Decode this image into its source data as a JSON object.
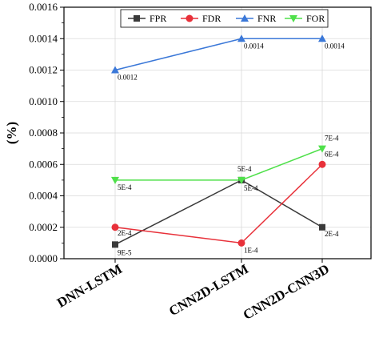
{
  "chart_data": {
    "type": "line",
    "title": "",
    "xlabel": "",
    "ylabel": "(%)",
    "ylim": [
      0,
      0.0016
    ],
    "yticks": [
      "0.0000",
      "0.0002",
      "0.0004",
      "0.0006",
      "0.0008",
      "0.0010",
      "0.0012",
      "0.0014",
      "0.0016"
    ],
    "categories": [
      "DNN-LSTM",
      "CNN2D-LSTM",
      "CNN2D-CNN3D"
    ],
    "grid": true,
    "legend_position": "top-right",
    "series": [
      {
        "name": "FPR",
        "color": "#3a3a3a",
        "marker": "square",
        "values": [
          9e-05,
          0.0005,
          0.0002
        ],
        "labels": [
          "9E-5",
          "5E-4",
          "2E-4"
        ]
      },
      {
        "name": "FDR",
        "color": "#e8313a",
        "marker": "circle",
        "values": [
          0.0002,
          0.0001,
          0.0006
        ],
        "labels": [
          "2E-4",
          "1E-4",
          "6E-4"
        ]
      },
      {
        "name": "FNR",
        "color": "#3b78d8",
        "marker": "triangle-up",
        "values": [
          0.0012,
          0.0014,
          0.0014
        ],
        "labels": [
          "0.0012",
          "0.0014",
          "0.0014"
        ]
      },
      {
        "name": "FOR",
        "color": "#4fe04a",
        "marker": "triangle-down",
        "values": [
          0.0005,
          0.0005,
          0.0007
        ],
        "labels": [
          "5E-4",
          "5E-4",
          "7E-4"
        ]
      }
    ]
  }
}
